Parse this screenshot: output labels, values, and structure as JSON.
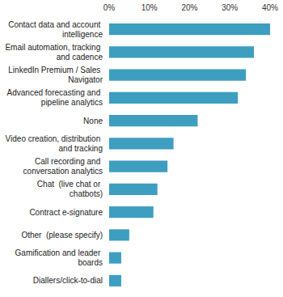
{
  "chart_data": {
    "type": "bar",
    "orientation": "horizontal",
    "categories": [
      "Contact data and account intelligence",
      "Email automation, tracking and cadence",
      "LinkedIn Premium / Sales Navigator",
      "Advanced forecasting and pipeline analytics",
      "None",
      "Video creation, distribution and tracking",
      "Call recording and conversation analytics",
      "Chat  (live chat or chatbots)",
      "Contract e-signature",
      "Other  (please specify)",
      "Gamification and leader boards",
      "Diallers/click-to-dial"
    ],
    "values": [
      40,
      36,
      34,
      32,
      22,
      16,
      14.5,
      12,
      11,
      5,
      3,
      3
    ],
    "color": "#3d9ec0",
    "xlim": [
      0,
      40
    ],
    "xticks": [
      {
        "value": 0,
        "label": "0%"
      },
      {
        "value": 10,
        "label": "10%"
      },
      {
        "value": 20,
        "label": "20%"
      },
      {
        "value": 30,
        "label": "30%"
      },
      {
        "value": 40,
        "label": "40%"
      }
    ],
    "grid": false
  }
}
